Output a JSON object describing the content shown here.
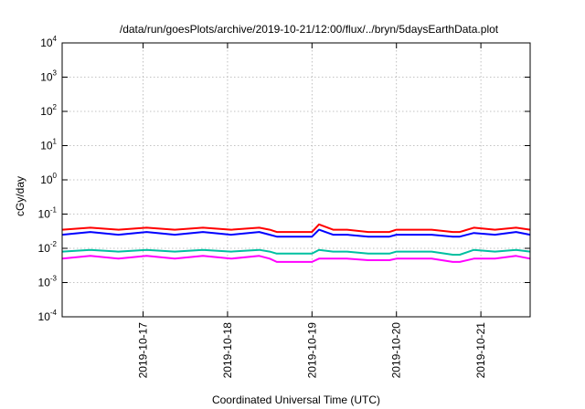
{
  "chart_data": {
    "type": "line",
    "title": "/data/run/goesPlots/archive/2019-10-21/12:00/flux/../bryn/5daysEarthData.plot",
    "xlabel": "Coordinated Universal Time (UTC)",
    "ylabel": "cGy/day",
    "y_scale": "log",
    "ylim": [
      0.0001,
      10000
    ],
    "y_ticks": [
      {
        "base": "10",
        "exp": "4",
        "value": 10000
      },
      {
        "base": "10",
        "exp": "3",
        "value": 1000
      },
      {
        "base": "10",
        "exp": "2",
        "value": 100
      },
      {
        "base": "10",
        "exp": "1",
        "value": 10
      },
      {
        "base": "10",
        "exp": "0",
        "value": 1
      },
      {
        "base": "10",
        "exp": "-1",
        "value": 0.1
      },
      {
        "base": "10",
        "exp": "-2",
        "value": 0.01
      },
      {
        "base": "10",
        "exp": "-3",
        "value": 0.001
      },
      {
        "base": "10",
        "exp": "-4",
        "value": 0.0001
      }
    ],
    "xlim": [
      "2019-10-16 01:00",
      "2019-10-21 14:00"
    ],
    "x_ticks": [
      {
        "label": "2019-10-17",
        "value": "2019-10-17 00:00"
      },
      {
        "label": "2019-10-18",
        "value": "2019-10-18 00:00"
      },
      {
        "label": "2019-10-19",
        "value": "2019-10-19 00:00"
      },
      {
        "label": "2019-10-20",
        "value": "2019-10-20 00:00"
      },
      {
        "label": "2019-10-21",
        "value": "2019-10-21 00:00"
      }
    ],
    "grid": true,
    "legend": "none",
    "series": [
      {
        "color": "#ff0000",
        "x": [
          "2019-10-16 01:00",
          "2019-10-16 09:00",
          "2019-10-16 17:00",
          "2019-10-17 01:00",
          "2019-10-17 09:00",
          "2019-10-17 17:00",
          "2019-10-18 01:00",
          "2019-10-18 09:00",
          "2019-10-18 12:00",
          "2019-10-18 14:00",
          "2019-10-19 00:00",
          "2019-10-19 02:00",
          "2019-10-19 06:00",
          "2019-10-19 10:00",
          "2019-10-19 16:00",
          "2019-10-19 22:00",
          "2019-10-20 00:00",
          "2019-10-20 04:00",
          "2019-10-20 10:00",
          "2019-10-20 16:00",
          "2019-10-20 18:00",
          "2019-10-20 22:00",
          "2019-10-21 04:00",
          "2019-10-21 10:00",
          "2019-10-21 14:00"
        ],
        "y": [
          0.035,
          0.04,
          0.035,
          0.04,
          0.035,
          0.04,
          0.035,
          0.04,
          0.035,
          0.03,
          0.03,
          0.05,
          0.035,
          0.035,
          0.03,
          0.03,
          0.035,
          0.035,
          0.035,
          0.03,
          0.03,
          0.04,
          0.035,
          0.04,
          0.035
        ]
      },
      {
        "color": "#0000ff",
        "x": [
          "2019-10-16 01:00",
          "2019-10-16 09:00",
          "2019-10-16 17:00",
          "2019-10-17 01:00",
          "2019-10-17 09:00",
          "2019-10-17 17:00",
          "2019-10-18 01:00",
          "2019-10-18 09:00",
          "2019-10-18 12:00",
          "2019-10-18 14:00",
          "2019-10-19 00:00",
          "2019-10-19 02:00",
          "2019-10-19 06:00",
          "2019-10-19 10:00",
          "2019-10-19 16:00",
          "2019-10-19 22:00",
          "2019-10-20 00:00",
          "2019-10-20 04:00",
          "2019-10-20 10:00",
          "2019-10-20 16:00",
          "2019-10-20 18:00",
          "2019-10-20 22:00",
          "2019-10-21 04:00",
          "2019-10-21 10:00",
          "2019-10-21 14:00"
        ],
        "y": [
          0.025,
          0.03,
          0.025,
          0.03,
          0.025,
          0.03,
          0.025,
          0.03,
          0.025,
          0.022,
          0.022,
          0.035,
          0.025,
          0.025,
          0.022,
          0.022,
          0.025,
          0.025,
          0.025,
          0.022,
          0.022,
          0.028,
          0.025,
          0.03,
          0.025
        ]
      },
      {
        "color": "#00c0a0",
        "x": [
          "2019-10-16 01:00",
          "2019-10-16 09:00",
          "2019-10-16 17:00",
          "2019-10-17 01:00",
          "2019-10-17 09:00",
          "2019-10-17 17:00",
          "2019-10-18 01:00",
          "2019-10-18 09:00",
          "2019-10-18 12:00",
          "2019-10-18 14:00",
          "2019-10-19 00:00",
          "2019-10-19 02:00",
          "2019-10-19 06:00",
          "2019-10-19 10:00",
          "2019-10-19 16:00",
          "2019-10-19 22:00",
          "2019-10-20 00:00",
          "2019-10-20 04:00",
          "2019-10-20 10:00",
          "2019-10-20 16:00",
          "2019-10-20 18:00",
          "2019-10-20 22:00",
          "2019-10-21 04:00",
          "2019-10-21 10:00",
          "2019-10-21 14:00"
        ],
        "y": [
          0.008,
          0.009,
          0.008,
          0.009,
          0.008,
          0.009,
          0.008,
          0.009,
          0.008,
          0.007,
          0.007,
          0.009,
          0.008,
          0.008,
          0.007,
          0.007,
          0.008,
          0.008,
          0.008,
          0.0065,
          0.0065,
          0.009,
          0.008,
          0.009,
          0.008
        ]
      },
      {
        "color": "#ff00ff",
        "x": [
          "2019-10-16 01:00",
          "2019-10-16 09:00",
          "2019-10-16 17:00",
          "2019-10-17 01:00",
          "2019-10-17 09:00",
          "2019-10-17 17:00",
          "2019-10-18 01:00",
          "2019-10-18 09:00",
          "2019-10-18 12:00",
          "2019-10-18 14:00",
          "2019-10-19 00:00",
          "2019-10-19 02:00",
          "2019-10-19 06:00",
          "2019-10-19 10:00",
          "2019-10-19 16:00",
          "2019-10-19 22:00",
          "2019-10-20 00:00",
          "2019-10-20 04:00",
          "2019-10-20 10:00",
          "2019-10-20 16:00",
          "2019-10-20 18:00",
          "2019-10-20 22:00",
          "2019-10-21 04:00",
          "2019-10-21 10:00",
          "2019-10-21 14:00"
        ],
        "y": [
          0.005,
          0.006,
          0.005,
          0.006,
          0.005,
          0.006,
          0.005,
          0.006,
          0.005,
          0.004,
          0.004,
          0.005,
          0.005,
          0.005,
          0.0045,
          0.0045,
          0.005,
          0.005,
          0.005,
          0.004,
          0.004,
          0.005,
          0.005,
          0.006,
          0.005
        ]
      }
    ]
  }
}
